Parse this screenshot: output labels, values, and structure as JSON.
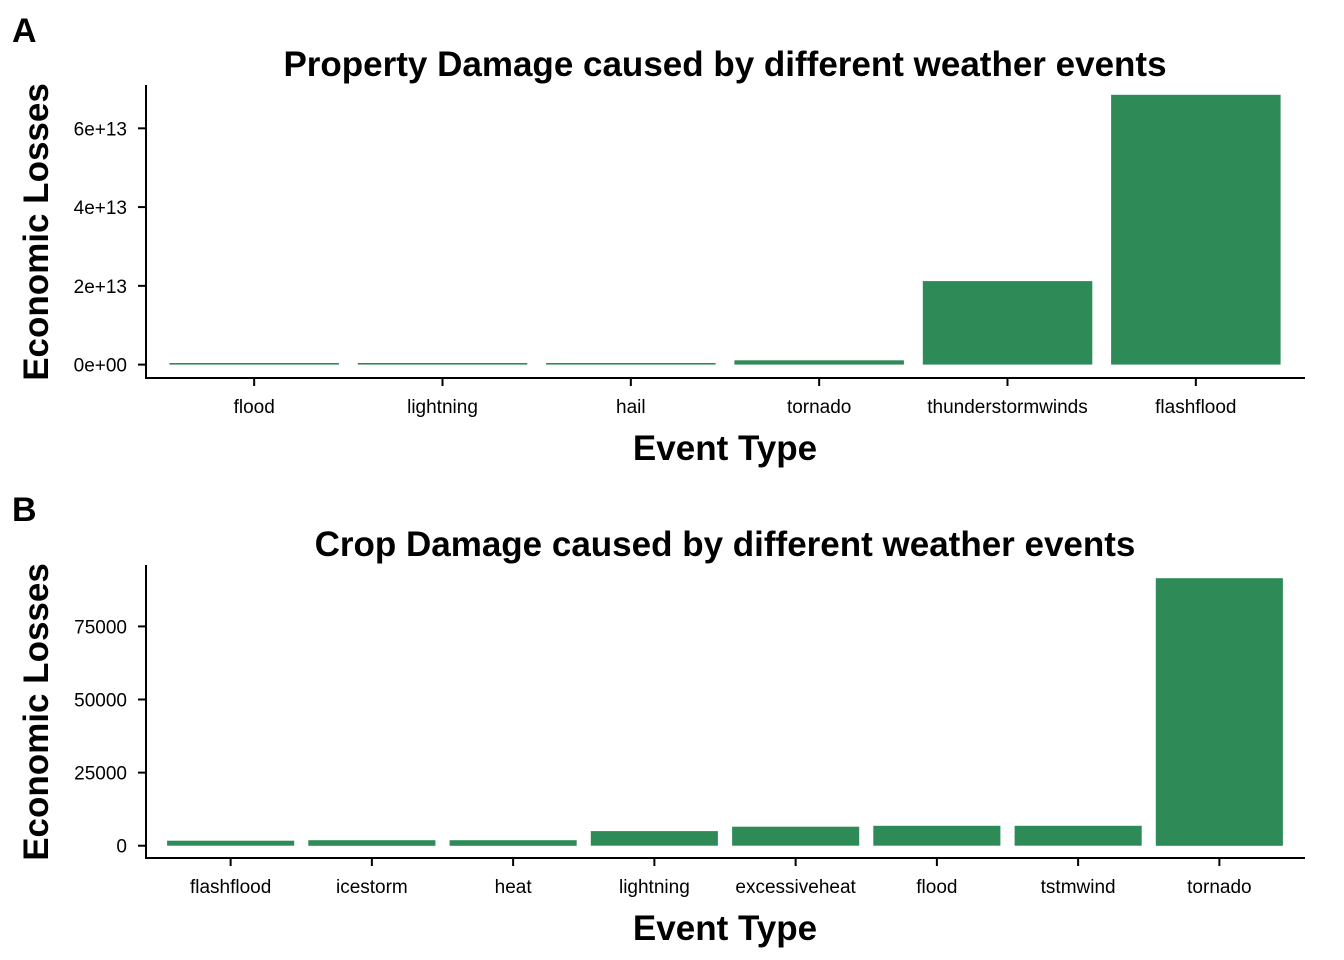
{
  "colors": {
    "bar": "#2e8b57"
  },
  "panels": [
    {
      "letter": "A"
    },
    {
      "letter": "B"
    }
  ],
  "chart_data": [
    {
      "type": "bar",
      "title": "Property Damage caused by different weather events",
      "xlabel": "Event Type",
      "ylabel": "Economic Losses",
      "categories": [
        "flood",
        "lightning",
        "hail",
        "tornado",
        "thunderstormwinds",
        "flashflood"
      ],
      "values": [
        400000000000.0,
        400000000000.0,
        400000000000.0,
        1100000000000.0,
        21200000000000.0,
        68500000000000.0
      ],
      "ylim": [
        -3400000000000.0,
        71000000000000.0
      ],
      "yticks": [
        0,
        20000000000000.0,
        40000000000000.0,
        60000000000000.0
      ],
      "ytick_labels": [
        "0e+00",
        "2e+13",
        "4e+13",
        "6e+13"
      ],
      "grid": false
    },
    {
      "type": "bar",
      "title": "Crop Damage caused by different weather events",
      "xlabel": "Event Type",
      "ylabel": "Economic Losses",
      "categories": [
        "flashflood",
        "icestorm",
        "heat",
        "lightning",
        "excessiveheat",
        "flood",
        "tstmwind",
        "tornado"
      ],
      "values": [
        1700,
        1900,
        1900,
        5000,
        6500,
        6800,
        6800,
        91500
      ],
      "ylim": [
        -4200,
        96000
      ],
      "yticks": [
        0,
        25000,
        50000,
        75000
      ],
      "ytick_labels": [
        "0",
        "25000",
        "50000",
        "75000"
      ],
      "grid": false
    }
  ]
}
